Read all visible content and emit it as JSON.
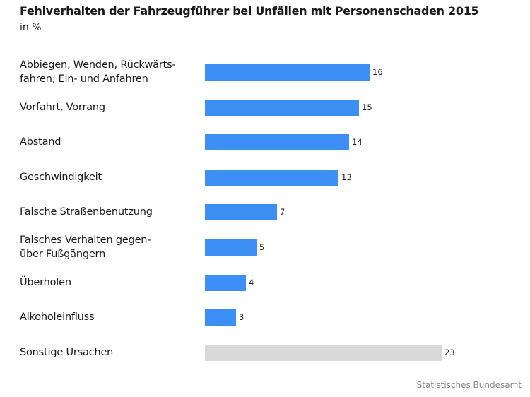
{
  "chart_data": {
    "type": "bar",
    "orientation": "horizontal",
    "title": "Fehlverhalten der Fahrzeugführer bei Unfällen mit Personenschaden 2015",
    "subtitle": "in %",
    "source": "Statistisches Bundesamt",
    "categories": [
      [
        "Abbiegen, Wenden, Rückwärts-",
        "fahren, Ein- und Anfahren"
      ],
      [
        "Vorfahrt, Vorrang"
      ],
      [
        "Abstand"
      ],
      [
        "Geschwindigkeit"
      ],
      [
        "Falsche Straßenbenutzung"
      ],
      [
        "Falsches Verhalten gegen-",
        "über Fußgängern"
      ],
      [
        "Überholen"
      ],
      [
        "Alkoholeinfluss"
      ],
      [
        "Sonstige Ursachen"
      ]
    ],
    "values": [
      16,
      15,
      14,
      13,
      7,
      5,
      4,
      3,
      23
    ],
    "value_labels": [
      "16",
      "15",
      "14",
      "13",
      "7",
      "5",
      "4",
      "3",
      "23"
    ],
    "colors": [
      "#3d8ef5",
      "#3d8ef5",
      "#3d8ef5",
      "#3d8ef5",
      "#3d8ef5",
      "#3d8ef5",
      "#3d8ef5",
      "#3d8ef5",
      "#d9d9d9"
    ],
    "xlim": [
      0,
      23
    ],
    "grid": false,
    "legend": "none"
  }
}
